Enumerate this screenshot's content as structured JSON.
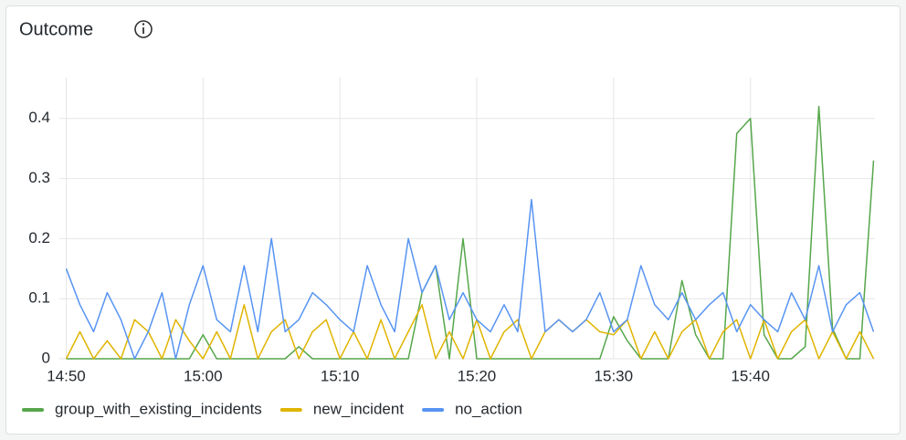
{
  "chart_data": {
    "type": "line",
    "title": "Outcome",
    "x": [
      890,
      891,
      892,
      893,
      894,
      895,
      896,
      897,
      898,
      899,
      900,
      901,
      902,
      903,
      904,
      905,
      906,
      907,
      908,
      909,
      910,
      911,
      912,
      913,
      914,
      915,
      916,
      917,
      918,
      919,
      920,
      921,
      922,
      923,
      924,
      925,
      926,
      927,
      928,
      929,
      930,
      931,
      932,
      933,
      934,
      935,
      936,
      937,
      938,
      939,
      940,
      941,
      942,
      943,
      944,
      945,
      946,
      947,
      948,
      949
    ],
    "series": [
      {
        "name": "group_with_existing_incidents",
        "color": "#56a64b",
        "values": [
          0,
          0,
          0,
          0,
          0,
          0,
          0,
          0,
          0,
          0,
          0.04,
          0,
          0,
          0,
          0,
          0,
          0,
          0.02,
          0,
          0,
          0,
          0,
          0,
          0,
          0,
          0,
          0.11,
          0.155,
          0,
          0.2,
          0,
          0,
          0,
          0,
          0,
          0,
          0,
          0,
          0,
          0,
          0.07,
          0.03,
          0,
          0,
          0,
          0.13,
          0.04,
          0,
          0,
          0.375,
          0.4,
          0.04,
          0,
          0,
          0.02,
          0.42,
          0.05,
          0,
          0,
          0.33
        ]
      },
      {
        "name": "new_incident",
        "color": "#e0b400",
        "values": [
          0,
          0.045,
          0,
          0.03,
          0,
          0.065,
          0.045,
          0,
          0.065,
          0.03,
          0,
          0.045,
          0,
          0.09,
          0,
          0.045,
          0.065,
          0,
          0.045,
          0.065,
          0,
          0.045,
          0,
          0.065,
          0,
          0.045,
          0.09,
          0,
          0.045,
          0,
          0.065,
          0,
          0.045,
          0.065,
          0,
          0.045,
          0.065,
          0.045,
          0.065,
          0.045,
          0.04,
          0.065,
          0,
          0.045,
          0,
          0.045,
          0.065,
          0,
          0.045,
          0.065,
          0,
          0.065,
          0,
          0.045,
          0.065,
          0,
          0.045,
          0,
          0.045,
          0
        ]
      },
      {
        "name": "no_action",
        "color": "#5794f2",
        "values": [
          0.15,
          0.09,
          0.045,
          0.11,
          0.065,
          0,
          0.045,
          0.11,
          0,
          0.09,
          0.155,
          0.065,
          0.045,
          0.155,
          0.045,
          0.2,
          0.045,
          0.065,
          0.11,
          0.09,
          0.065,
          0.045,
          0.155,
          0.09,
          0.045,
          0.2,
          0.11,
          0.155,
          0.065,
          0.11,
          0.065,
          0.045,
          0.09,
          0.045,
          0.265,
          0.045,
          0.065,
          0.045,
          0.065,
          0.11,
          0.045,
          0.065,
          0.155,
          0.09,
          0.065,
          0.11,
          0.065,
          0.09,
          0.11,
          0.045,
          0.09,
          0.065,
          0.045,
          0.11,
          0.065,
          0.155,
          0.045,
          0.09,
          0.11,
          0.045
        ]
      }
    ],
    "xlim": [
      889.5,
      949.1
    ],
    "xticks": [
      {
        "value": 890,
        "label": "14:50"
      },
      {
        "value": 900,
        "label": "15:00"
      },
      {
        "value": 910,
        "label": "15:10"
      },
      {
        "value": 920,
        "label": "15:20"
      },
      {
        "value": 930,
        "label": "15:30"
      },
      {
        "value": 940,
        "label": "15:40"
      }
    ],
    "ylim": [
      0,
      0.468
    ],
    "yticks": [
      0,
      0.1,
      0.2,
      0.3,
      0.4
    ],
    "grid": true
  }
}
